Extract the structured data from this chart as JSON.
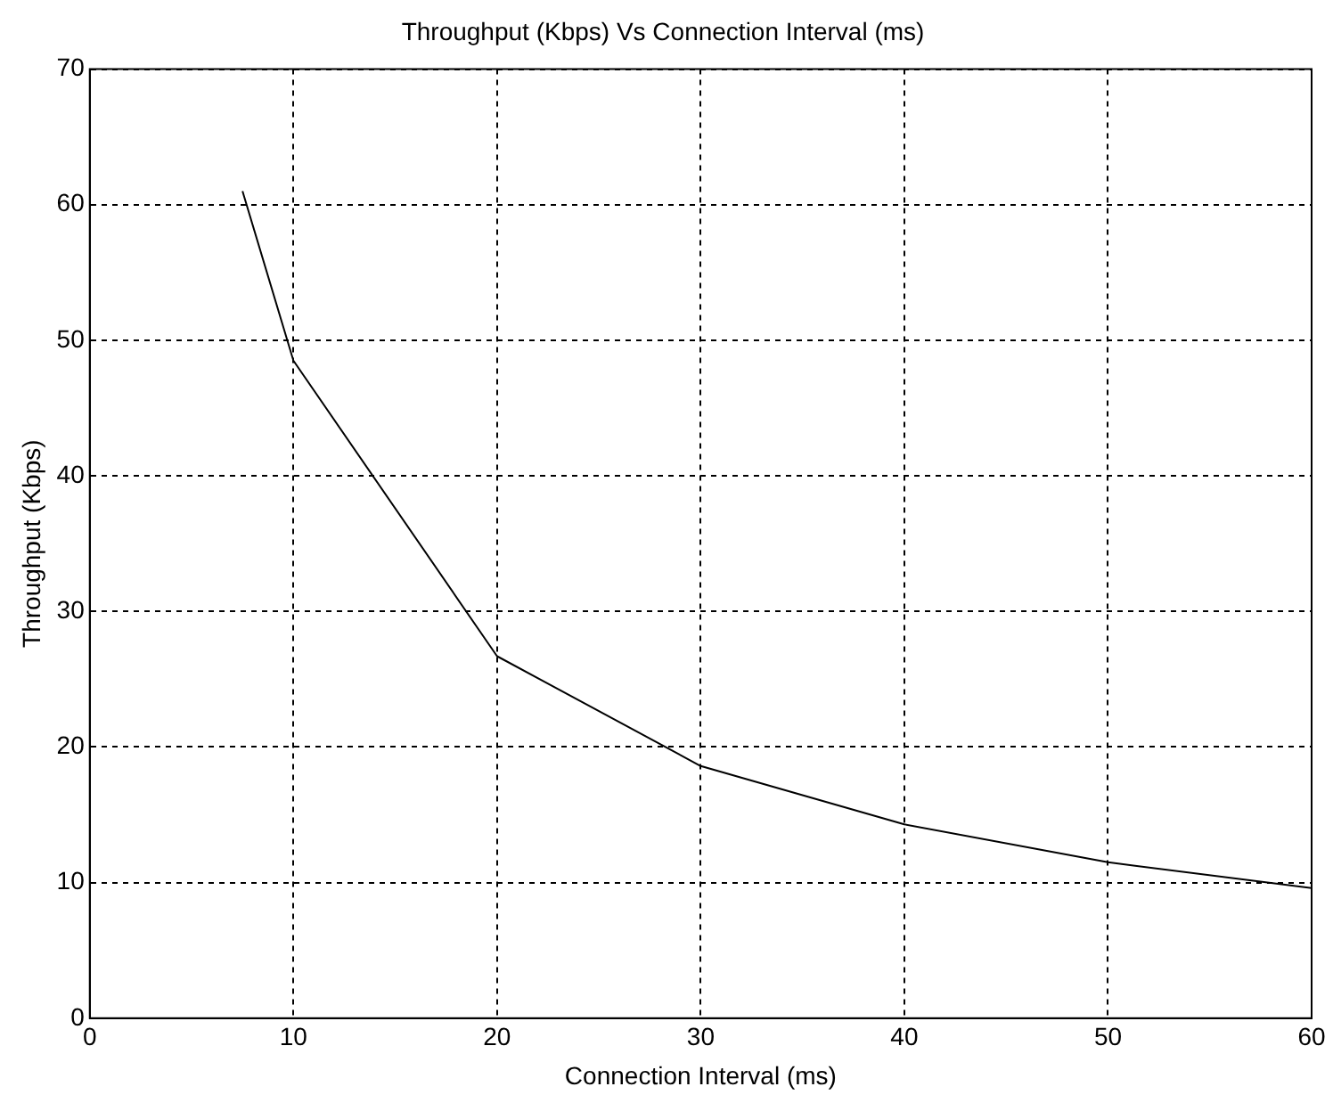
{
  "chart_data": {
    "type": "line",
    "title": "Throughput (Kbps) Vs Connection Interval (ms)",
    "xlabel": "Connection Interval (ms)",
    "ylabel": "Throughput (Kbps)",
    "x": [
      7.5,
      10,
      20,
      30,
      40,
      50,
      60
    ],
    "series": [
      {
        "color": "#000000",
        "values": [
          61,
          48.5,
          26.7,
          18.6,
          14.3,
          11.5,
          9.6
        ]
      }
    ],
    "xlim": [
      0,
      60
    ],
    "xticks": [
      0,
      10,
      20,
      30,
      40,
      50,
      60
    ],
    "ylim": [
      0,
      70
    ],
    "yticks": [
      0,
      10,
      20,
      30,
      40,
      50,
      60,
      70
    ],
    "grid": true,
    "legend": false,
    "marker": "none",
    "line_style": "solid"
  }
}
